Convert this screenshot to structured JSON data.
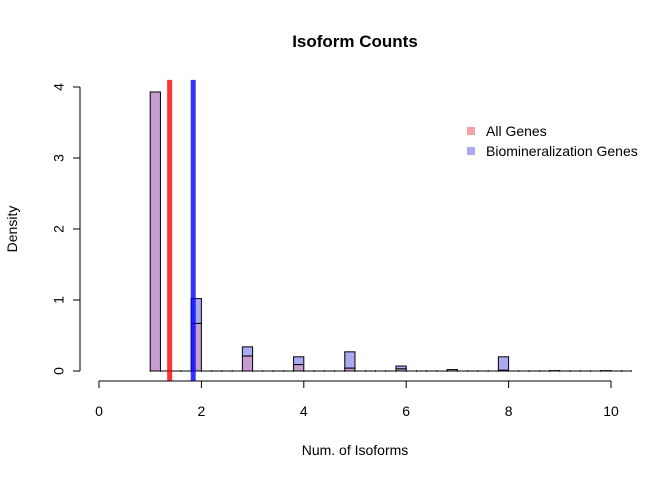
{
  "chart_data": {
    "type": "histogram",
    "title": "Isoform Counts",
    "xlabel": "Num. of Isoforms",
    "ylabel": "Density",
    "xlim": [
      0,
      10.4
    ],
    "ylim": [
      0,
      4
    ],
    "xticks": [
      0,
      2,
      4,
      6,
      8,
      10
    ],
    "yticks": [
      0,
      1,
      2,
      3,
      4
    ],
    "bin_width": 0.2,
    "grid": false,
    "legend_position": "top-right",
    "series": [
      {
        "name": "All Genes",
        "fill": "#f4a3a3",
        "bins": [
          {
            "x0": 1.0,
            "density": 3.93
          },
          {
            "x0": 1.8,
            "density": 0.67
          },
          {
            "x0": 2.8,
            "density": 0.21
          },
          {
            "x0": 3.8,
            "density": 0.09
          },
          {
            "x0": 4.8,
            "density": 0.04
          },
          {
            "x0": 5.8,
            "density": 0.03
          },
          {
            "x0": 6.8,
            "density": 0.02
          },
          {
            "x0": 7.8,
            "density": 0.01
          },
          {
            "x0": 8.8,
            "density": 0.005
          },
          {
            "x0": 9.8,
            "density": 0.005
          }
        ],
        "mean_line": {
          "x": 1.38,
          "color": "#ff0000"
        }
      },
      {
        "name": "Biomineralization Genes",
        "fill": "#a9a9f4",
        "bins": [
          {
            "x0": 1.0,
            "density": 3.93
          },
          {
            "x0": 1.8,
            "density": 1.02
          },
          {
            "x0": 2.8,
            "density": 0.34
          },
          {
            "x0": 3.8,
            "density": 0.2
          },
          {
            "x0": 4.8,
            "density": 0.27
          },
          {
            "x0": 5.8,
            "density": 0.07
          },
          {
            "x0": 7.8,
            "density": 0.2
          }
        ],
        "mean_line": {
          "x": 1.84,
          "color": "#0000ff"
        }
      }
    ],
    "overlap_fill": "#c79ccf"
  }
}
